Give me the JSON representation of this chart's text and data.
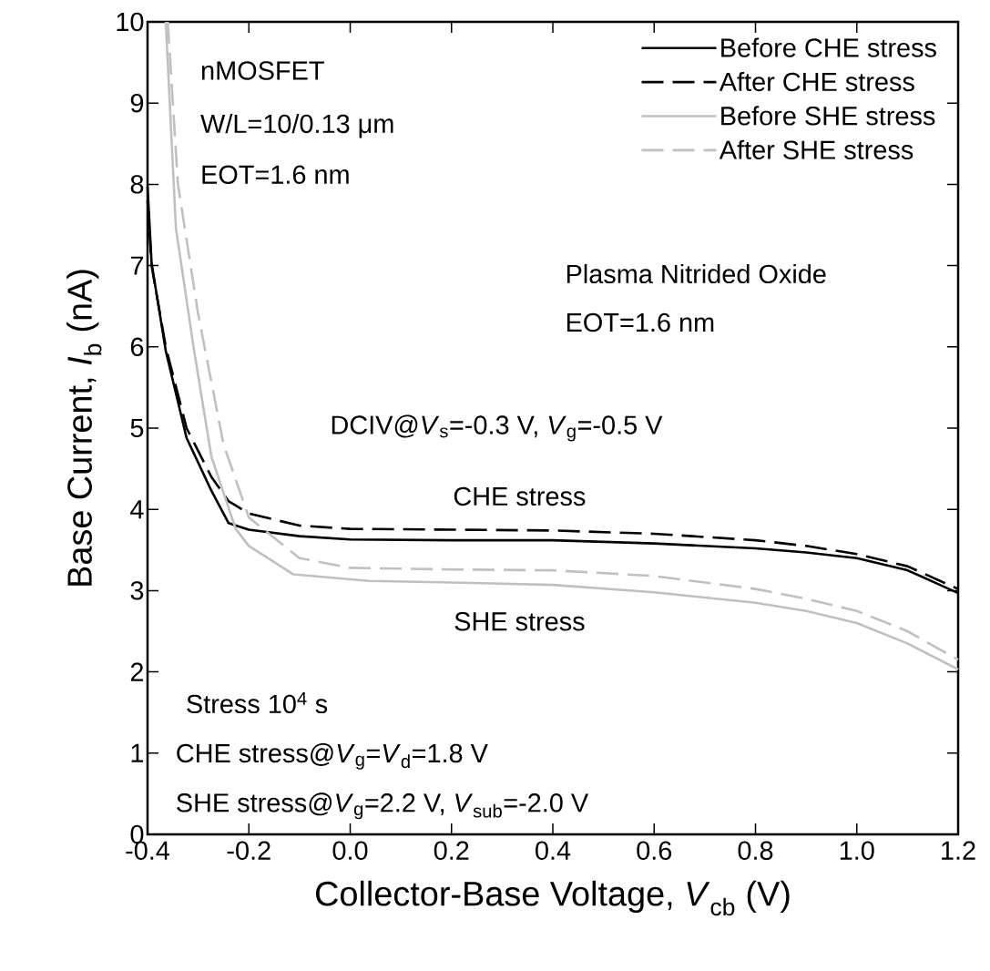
{
  "chart_data": {
    "type": "line",
    "xlabel": "Collector-Base Voltage, *V*$_{cb}$ (V)",
    "ylabel": "Base Current, *I*$_{b}$ (nA)",
    "xlim": [
      -0.4,
      1.2
    ],
    "ylim": [
      0,
      10
    ],
    "xticks": [
      -0.4,
      -0.2,
      {
        "value": 0,
        "label": "0.0"
      },
      0.2,
      0.4,
      0.6,
      0.8,
      {
        "value": 1,
        "label": "1.0"
      },
      1.2
    ],
    "yticks": [
      0,
      1,
      2,
      3,
      4,
      5,
      6,
      7,
      8,
      9,
      10
    ],
    "grid": false,
    "legend": "top right",
    "marker": "none",
    "series": [
      {
        "name": "Before CHE stress",
        "color": "#000000",
        "line_style": "solid",
        "x": [
          -0.4,
          -0.392,
          -0.364,
          -0.323,
          -0.274,
          -0.24,
          -0.2,
          -0.1,
          0,
          0.2,
          0.4,
          0.6,
          0.8,
          0.9,
          1.0,
          1.1,
          1.2
        ],
        "values": [
          7.97,
          7.03,
          5.95,
          4.88,
          4.23,
          3.83,
          3.75,
          3.67,
          3.63,
          3.62,
          3.62,
          3.58,
          3.52,
          3.47,
          3.4,
          3.25,
          2.97
        ]
      },
      {
        "name": "After CHE stress",
        "color": "#000000",
        "line_style": "dashed",
        "x": [
          -0.4,
          -0.392,
          -0.364,
          -0.323,
          -0.274,
          -0.24,
          -0.2,
          -0.1,
          0,
          0.2,
          0.4,
          0.6,
          0.8,
          0.9,
          1.0,
          1.1,
          1.2
        ],
        "values": [
          7.8,
          7.0,
          6.0,
          5.0,
          4.4,
          4.1,
          3.95,
          3.8,
          3.76,
          3.75,
          3.74,
          3.7,
          3.62,
          3.55,
          3.45,
          3.3,
          3.02
        ]
      },
      {
        "name": "Before SHE stress",
        "color": "#c0c0c0",
        "line_style": "solid",
        "x": [
          -0.364,
          -0.344,
          -0.308,
          -0.274,
          -0.226,
          -0.2,
          -0.112,
          0.037,
          0.2,
          0.4,
          0.6,
          0.8,
          0.9,
          1.0,
          1.1,
          1.2
        ],
        "values": [
          10,
          7.46,
          5.95,
          4.65,
          3.76,
          3.55,
          3.2,
          3.12,
          3.1,
          3.07,
          2.98,
          2.85,
          2.75,
          2.6,
          2.35,
          2.03
        ]
      },
      {
        "name": "After SHE stress",
        "color": "#c0c0c0",
        "line_style": "dashed",
        "x": [
          -0.36,
          -0.34,
          -0.3,
          -0.25,
          -0.2,
          -0.1,
          0,
          0.2,
          0.4,
          0.6,
          0.8,
          0.9,
          1.0,
          1.1,
          1.2
        ],
        "values": [
          10,
          8.0,
          6.4,
          4.8,
          3.9,
          3.4,
          3.28,
          3.26,
          3.25,
          3.18,
          3.02,
          2.9,
          2.75,
          2.5,
          2.15
        ]
      }
    ],
    "annotations": [
      "nMOSFET",
      "W/L=10/0.13 μm",
      "EOT=1.6 nm",
      "Plasma Nitrided Oxide",
      "EOT=1.6 nm",
      "DCIV@*V*$_{s}$=-0.3 V, *V*$_{g}$=-0.5 V",
      "CHE stress",
      "SHE stress",
      "Stress 10$^{4}$ s",
      "CHE stress@*V*$_{g}$=*V*$_{d}$=1.8 V",
      "SHE stress@*V*$_{g}$=2.2 V, *V*$_{sub}$=-2.0 V"
    ]
  }
}
